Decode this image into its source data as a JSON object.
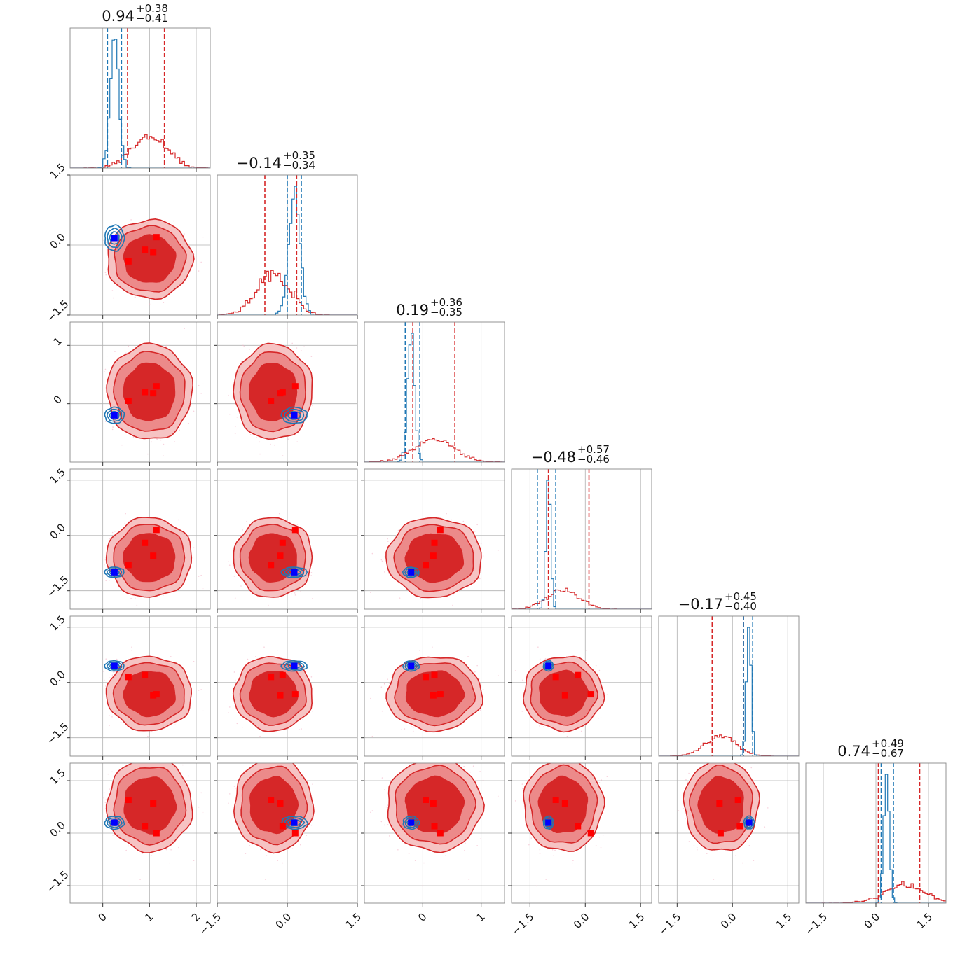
{
  "chart_data": {
    "type": "corner",
    "n_params": 6,
    "colors": {
      "reference": "#1f77b4",
      "posterior": "#d62728",
      "posterior_fill_outer": "#f6c3c3",
      "posterior_fill_mid": "#ec8a8a",
      "true_marker": "#0000ff",
      "point_marker": "#ff0000",
      "grid": "#b0b0b0"
    },
    "titles": [
      {
        "median": "0.94",
        "plus": "+0.38",
        "minus": "−0.41"
      },
      {
        "median": "−0.14",
        "plus": "+0.35",
        "minus": "−0.34"
      },
      {
        "median": "0.19",
        "plus": "+0.36",
        "minus": "−0.35"
      },
      {
        "median": "−0.48",
        "plus": "+0.57",
        "minus": "−0.46"
      },
      {
        "median": "−0.17",
        "plus": "+0.45",
        "minus": "−0.40"
      },
      {
        "median": "0.74",
        "plus": "+0.49",
        "minus": "−0.67"
      }
    ],
    "axis_ranges": [
      [
        -0.7,
        2.3
      ],
      [
        -1.5,
        1.5
      ],
      [
        -1.0,
        1.4
      ],
      [
        -2.0,
        1.8
      ],
      [
        -2.0,
        1.8
      ],
      [
        -2.0,
        2.0
      ]
    ],
    "ticks": [
      {
        "values": [
          0,
          1,
          2
        ],
        "labels": [
          "0",
          "1",
          "2"
        ]
      },
      {
        "values": [
          -1.5,
          0,
          1.5
        ],
        "labels": [
          "−1.5",
          "0.0",
          "1.5"
        ]
      },
      {
        "values": [
          0,
          1
        ],
        "labels": [
          "0",
          "1"
        ]
      },
      {
        "values": [
          -1.5,
          0,
          1.5
        ],
        "labels": [
          "−1.5",
          "0.0",
          "1.5"
        ]
      },
      {
        "values": [
          -1.5,
          0,
          1.5
        ],
        "labels": [
          "−1.5",
          "0.0",
          "1.5"
        ]
      },
      {
        "values": [
          -1.5,
          0,
          1.5
        ],
        "labels": [
          "−1.5",
          "0.0",
          "1.5"
        ]
      }
    ],
    "reference_samples": {
      "mean": [
        0.25,
        0.15,
        -0.2,
        -1.0,
        0.45,
        0.3
      ],
      "std": [
        0.09,
        0.12,
        0.06,
        0.06,
        0.06,
        0.08
      ],
      "quantile_lines": [
        [
          0.1,
          0.4
        ],
        [
          0.0,
          0.3
        ],
        [
          -0.3,
          -0.05
        ],
        [
          -1.3,
          -0.8
        ],
        [
          0.3,
          0.55
        ],
        [
          0.15,
          0.5
        ]
      ]
    },
    "posterior_samples": {
      "mean": [
        1.0,
        -0.3,
        0.2,
        -0.6,
        -0.3,
        0.8
      ],
      "std": [
        0.38,
        0.35,
        0.34,
        0.45,
        0.42,
        0.55
      ],
      "quantile_lines": [
        [
          0.53,
          1.32
        ],
        [
          -0.48,
          0.2
        ],
        [
          -0.17,
          0.55
        ],
        [
          -1.0,
          0.1
        ],
        [
          -0.55,
          0.3
        ],
        [
          0.07,
          1.25
        ]
      ]
    },
    "markers": {
      "true": [
        0.25,
        0.15,
        -0.2,
        -1.0,
        0.45,
        0.3
      ],
      "points": [
        [
          0.55,
          -0.35,
          0.05,
          -0.8,
          0.15,
          0.95
        ],
        [
          0.9,
          -0.1,
          0.2,
          -0.2,
          0.2,
          0.2
        ],
        [
          1.08,
          -0.15,
          0.18,
          -0.55,
          -0.35,
          0.85
        ],
        [
          1.15,
          0.17,
          0.3,
          0.15,
          -0.32,
          0.0
        ]
      ]
    }
  }
}
